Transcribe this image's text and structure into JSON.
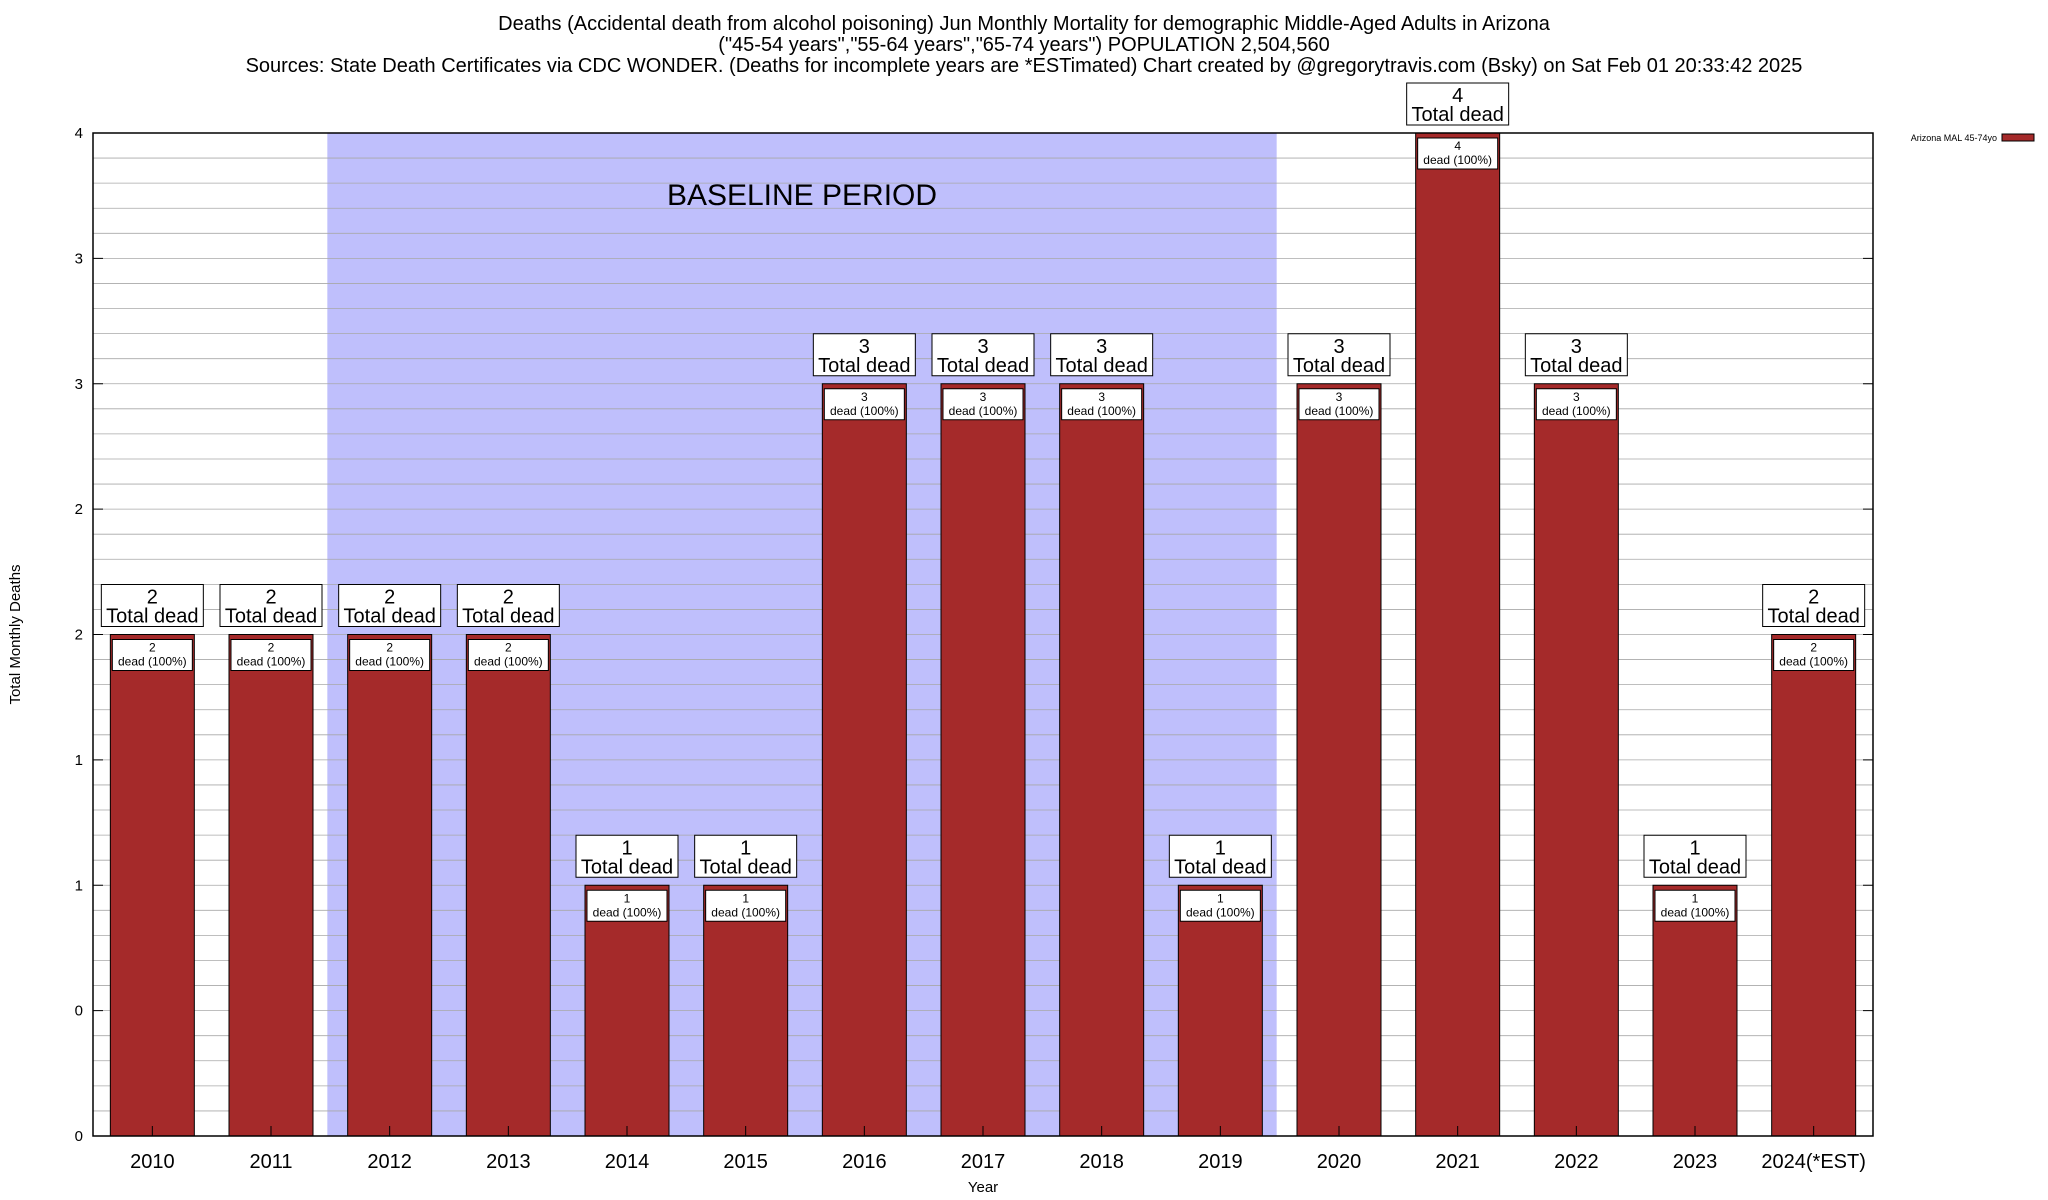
{
  "chart_data": {
    "type": "bar",
    "title_lines": [
      "Deaths (Accidental death from alcohol poisoning) Jun Monthly Mortality for demographic Middle-Aged Adults in Arizona",
      "(\"45-54 years\",\"55-64 years\",\"65-74 years\") POPULATION 2,504,560",
      "Sources: State Death Certificates via CDC WONDER. (Deaths for incomplete years are *ESTimated)                Chart created by @gregorytravis.com (Bsky) on Sat Feb 01 20:33:42 2025"
    ],
    "xlabel": "Year",
    "ylabel": "Total Monthly Deaths",
    "categories": [
      "2010",
      "2011",
      "2012",
      "2013",
      "2014",
      "2015",
      "2016",
      "2017",
      "2018",
      "2019",
      "2020",
      "2021",
      "2022",
      "2023",
      "2024(*EST)"
    ],
    "series": [
      {
        "name": "Arizona MAL 45-74yo",
        "values": [
          2,
          2,
          2,
          2,
          1,
          1,
          3,
          3,
          3,
          1,
          3,
          4,
          3,
          1,
          2
        ],
        "color": "#a52a2a"
      }
    ],
    "total_label_suffix": "Total dead",
    "inner_label_suffix": "dead (100%)",
    "ylim": [
      0,
      4
    ],
    "yticks": [
      0,
      0.5,
      1,
      1.5,
      2,
      2.5,
      3,
      3.5,
      4
    ],
    "ytick_labels": [
      "0",
      "0",
      "1",
      "1",
      "2",
      "2",
      "3",
      "3",
      "4"
    ],
    "minor_step": 0.1,
    "grid": true,
    "baseline": {
      "label": "BASELINE PERIOD",
      "start": "2012",
      "end": "2019",
      "color": "#bfbffc"
    },
    "legend_position": "top-right"
  }
}
